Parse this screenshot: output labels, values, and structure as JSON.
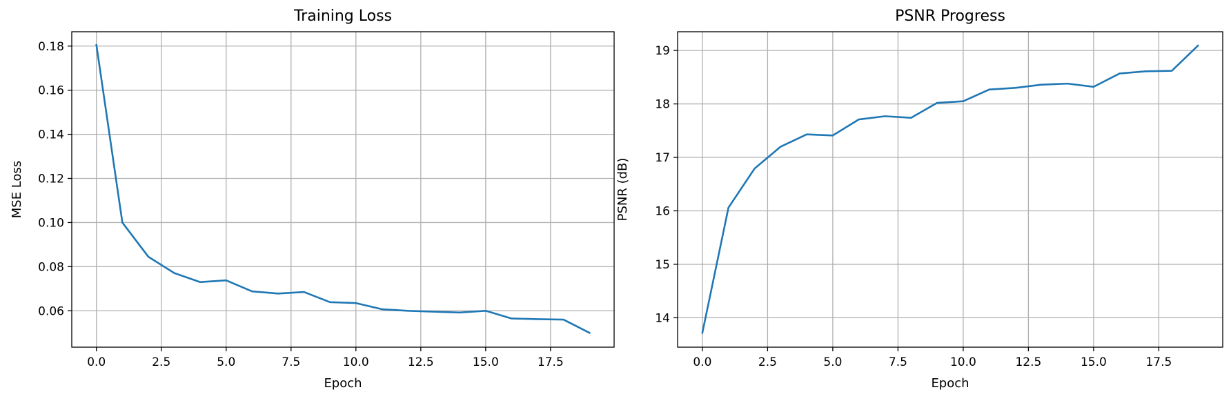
{
  "chart_data": [
    {
      "type": "line",
      "title": "Training Loss",
      "xlabel": "Epoch",
      "ylabel": "MSE Loss",
      "grid": true,
      "xlim": [
        -0.95,
        19.95
      ],
      "ylim": [
        0.0435,
        0.1865
      ],
      "xticks": [
        0.0,
        2.5,
        5.0,
        7.5,
        10.0,
        12.5,
        15.0,
        17.5
      ],
      "xtick_labels": [
        "0.0",
        "2.5",
        "5.0",
        "7.5",
        "10.0",
        "12.5",
        "15.0",
        "17.5"
      ],
      "yticks": [
        0.06,
        0.08,
        0.1,
        0.12,
        0.14,
        0.16,
        0.18
      ],
      "ytick_labels": [
        "0.06",
        "0.08",
        "0.10",
        "0.12",
        "0.14",
        "0.16",
        "0.18"
      ],
      "x": [
        0,
        1,
        2,
        3,
        4,
        5,
        6,
        7,
        8,
        9,
        10,
        11,
        12,
        13,
        14,
        15,
        16,
        17,
        18,
        19
      ],
      "series": [
        {
          "values": [
            0.1805,
            0.1,
            0.0845,
            0.0771,
            0.073,
            0.0738,
            0.0688,
            0.0678,
            0.0685,
            0.0639,
            0.0635,
            0.0607,
            0.06,
            0.0596,
            0.0592,
            0.06,
            0.0565,
            0.0562,
            0.056,
            0.05
          ],
          "color": "#1f77b4"
        }
      ]
    },
    {
      "type": "line",
      "title": "PSNR Progress",
      "xlabel": "Epoch",
      "ylabel": "PSNR (dB)",
      "grid": true,
      "xlim": [
        -0.95,
        19.95
      ],
      "ylim": [
        13.45,
        19.35
      ],
      "xticks": [
        0.0,
        2.5,
        5.0,
        7.5,
        10.0,
        12.5,
        15.0,
        17.5
      ],
      "xtick_labels": [
        "0.0",
        "2.5",
        "5.0",
        "7.5",
        "10.0",
        "12.5",
        "15.0",
        "17.5"
      ],
      "yticks": [
        14,
        15,
        16,
        17,
        18,
        19
      ],
      "ytick_labels": [
        "14",
        "15",
        "16",
        "17",
        "18",
        "19"
      ],
      "x": [
        0,
        1,
        2,
        3,
        4,
        5,
        6,
        7,
        8,
        9,
        10,
        11,
        12,
        13,
        14,
        15,
        16,
        17,
        18,
        19
      ],
      "series": [
        {
          "values": [
            13.72,
            16.06,
            16.79,
            17.2,
            17.43,
            17.41,
            17.71,
            17.77,
            17.74,
            18.02,
            18.05,
            18.27,
            18.3,
            18.36,
            18.38,
            18.32,
            18.57,
            18.61,
            18.62,
            19.09
          ],
          "color": "#1f77b4"
        }
      ]
    }
  ]
}
